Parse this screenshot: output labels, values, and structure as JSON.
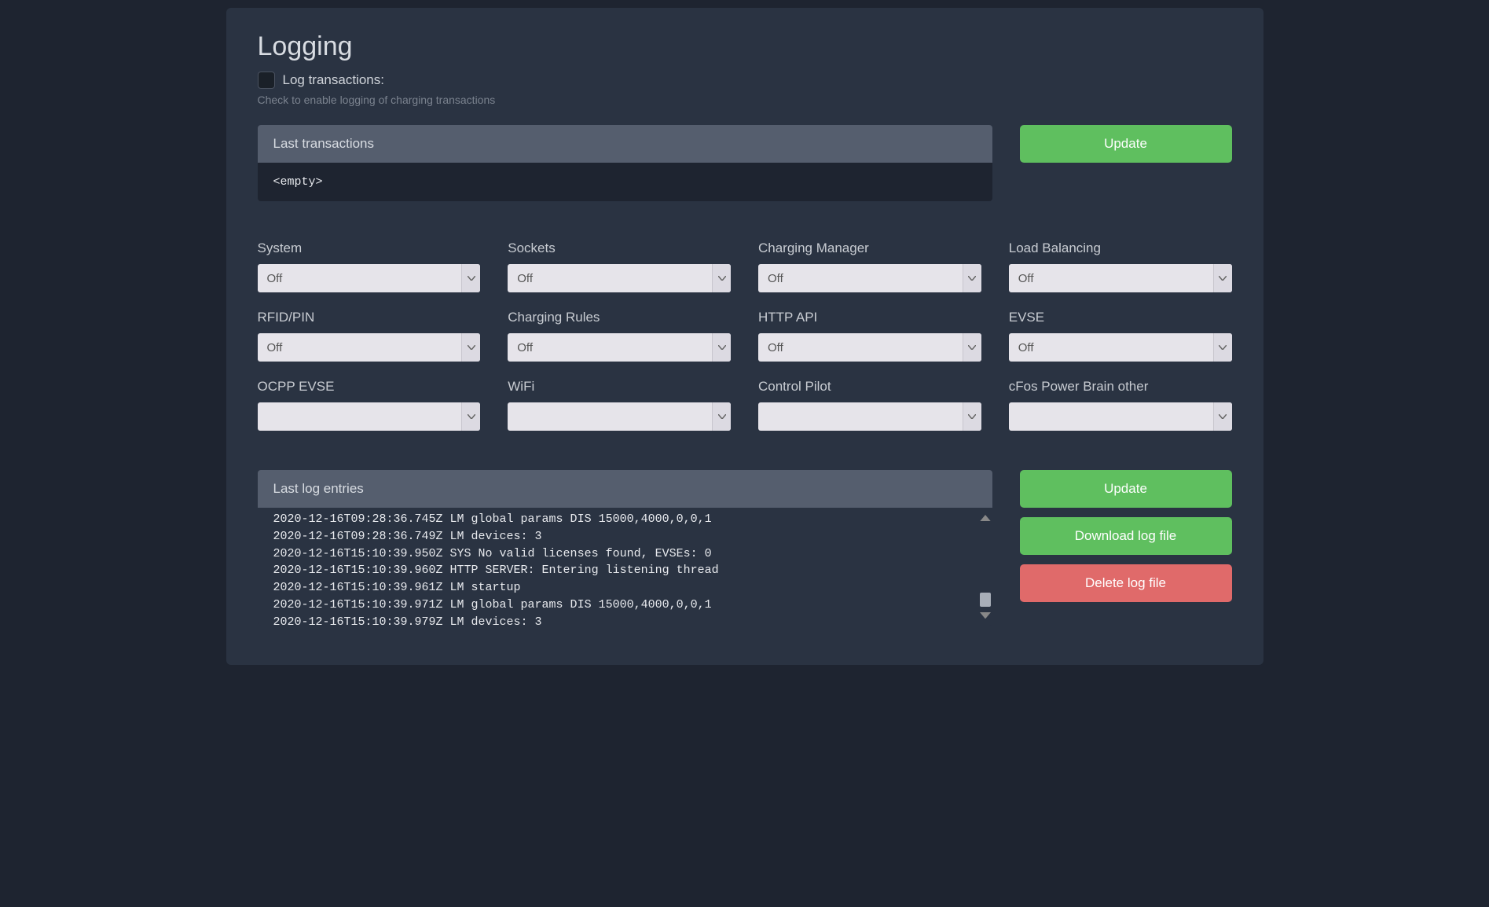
{
  "colors": {
    "page_bg": "#1e2430",
    "panel_bg": "#2a3342",
    "header_bg": "#555e6e",
    "btn_green": "#5fbf5f",
    "btn_red": "#e06a6a",
    "select_bg": "#e6e4ea",
    "text_primary": "#d8dce2",
    "text_muted": "#7a828e"
  },
  "title": "Logging",
  "checkbox": {
    "label": "Log transactions:",
    "help": "Check to enable logging of charging transactions",
    "checked": false
  },
  "transactions": {
    "header": "Last transactions",
    "content": "<empty>"
  },
  "buttons": {
    "update_top": "Update",
    "update_log": "Update",
    "download": "Download log file",
    "delete": "Delete log file"
  },
  "selects": [
    {
      "label": "System",
      "value": "Off"
    },
    {
      "label": "Sockets",
      "value": "Off"
    },
    {
      "label": "Charging Manager",
      "value": "Off"
    },
    {
      "label": "Load Balancing",
      "value": "Off"
    },
    {
      "label": "RFID/PIN",
      "value": "Off"
    },
    {
      "label": "Charging Rules",
      "value": "Off"
    },
    {
      "label": "HTTP API",
      "value": "Off"
    },
    {
      "label": "EVSE",
      "value": "Off"
    },
    {
      "label": "OCPP EVSE",
      "value": ""
    },
    {
      "label": "WiFi",
      "value": ""
    },
    {
      "label": "Control Pilot",
      "value": ""
    },
    {
      "label": "cFos Power Brain other",
      "value": ""
    }
  ],
  "log": {
    "header": "Last log entries",
    "lines": [
      "2020-12-16T09:28:36.745Z LM global params DIS 15000,4000,0,0,1",
      "2020-12-16T09:28:36.749Z LM devices: 3",
      "2020-12-16T15:10:39.950Z SYS No valid licenses found, EVSEs: 0",
      "2020-12-16T15:10:39.960Z HTTP SERVER: Entering listening thread",
      "2020-12-16T15:10:39.961Z LM startup",
      "2020-12-16T15:10:39.971Z LM global params DIS 15000,4000,0,0,1",
      "2020-12-16T15:10:39.979Z LM devices: 3"
    ]
  }
}
